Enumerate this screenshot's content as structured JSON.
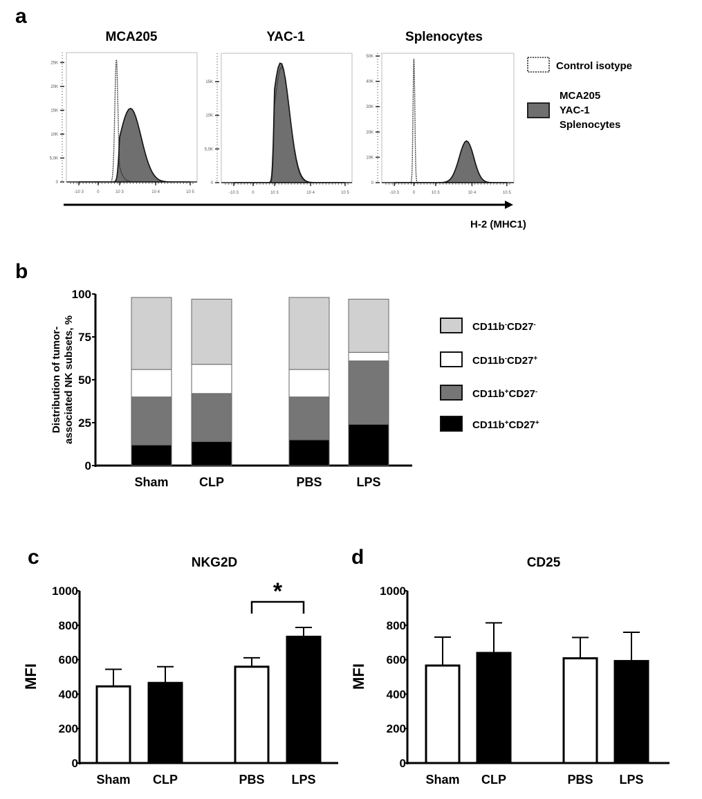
{
  "panel_letters": {
    "a": "a",
    "b": "b",
    "c": "c",
    "d": "d"
  },
  "chart_data": [
    {
      "type": "histogram",
      "panel": "a",
      "xlabel": "H-2 (MHC1)",
      "x_ticks": [
        "-10 3",
        "0",
        "10 3",
        "10 4",
        "10 5"
      ],
      "legend": [
        {
          "label": "Control isotype",
          "style": "dotted-outline"
        },
        {
          "label": "MCA205\nYAC-1\nSplenocytes",
          "lines": [
            "MCA205",
            "YAC-1",
            "Splenocytes"
          ],
          "style": "filled-gray",
          "color": "#6f6f6f"
        }
      ],
      "subplots": [
        {
          "title": "MCA205",
          "y_ticks": [
            "0",
            "5,0K",
            "10K",
            "15K",
            "20K",
            "25K"
          ],
          "y_tick_values": [
            0,
            5000,
            10000,
            15000,
            20000,
            25000
          ],
          "ylim": [
            0,
            26500
          ],
          "control_peak": {
            "x_log10": 2.55,
            "count": 25600,
            "width": 0.22
          },
          "sample_peak": {
            "x_log10": 3.3,
            "count": 15400,
            "width": 0.3
          }
        },
        {
          "title": "YAC-1",
          "y_ticks": [
            "0",
            "5,0K",
            "10K",
            "15K"
          ],
          "y_tick_values": [
            0,
            5000,
            10000,
            15000
          ],
          "ylim": [
            0,
            18800
          ],
          "control_peak": {
            "x_log10": 3.2,
            "count": 17200,
            "width": 0.22
          },
          "sample_peak": {
            "x_log10": 3.17,
            "count": 17800,
            "width": 0.24
          }
        },
        {
          "title": "Splenocytes",
          "y_ticks": [
            "0",
            "10K",
            "20K",
            "30K",
            "40K",
            "50K"
          ],
          "y_tick_values": [
            0,
            10000,
            20000,
            30000,
            40000,
            50000
          ],
          "ylim": [
            0,
            50000
          ],
          "control_peak": {
            "x_log10": 0,
            "count": 48900,
            "width": 0.13
          },
          "sample_peak": {
            "x_log10": 3.85,
            "count": 16500,
            "width": 0.2
          }
        }
      ]
    },
    {
      "type": "bar",
      "stacked": true,
      "panel": "b",
      "ylabel_lines": [
        "Distribution of tumor-",
        "associated NK subsets, %"
      ],
      "ylim": [
        0,
        100
      ],
      "y_ticks": [
        0,
        25,
        50,
        75,
        100
      ],
      "categories": [
        "Sham",
        "CLP",
        "PBS",
        "LPS"
      ],
      "series": [
        {
          "name": "CD11b+CD27+",
          "label_main": "CD11b",
          "sup1": "+",
          "label_mid": "CD27",
          "sup2": "+",
          "color": "#000000",
          "values": [
            12,
            14,
            15,
            24
          ]
        },
        {
          "name": "CD11b+CD27-",
          "label_main": "CD11b",
          "sup1": "+",
          "label_mid": "CD27",
          "sup2": "-",
          "color": "#767676",
          "values": [
            28,
            28,
            25,
            37
          ]
        },
        {
          "name": "CD11b-CD27+",
          "label_main": "CD11b",
          "sup1": "-",
          "label_mid": "CD27",
          "sup2": "+",
          "color": "#ffffff",
          "values": [
            16,
            17,
            16,
            5
          ]
        },
        {
          "name": "CD11b-CD27-",
          "label_main": "CD11b",
          "sup1": "-",
          "label_mid": "CD27",
          "sup2": "-",
          "color": "#d0d0d0",
          "values": [
            42,
            38,
            42,
            31
          ]
        }
      ],
      "legend_order": [
        "CD11b-CD27-",
        "CD11b-CD27+",
        "CD11b+CD27-",
        "CD11b+CD27+"
      ]
    },
    {
      "type": "bar",
      "panel": "c",
      "title": "NKG2D",
      "ylabel": "MFI",
      "ylim": [
        0,
        1000
      ],
      "y_ticks": [
        0,
        200,
        400,
        600,
        800,
        1000
      ],
      "categories": [
        "Sham",
        "CLP",
        "PBS",
        "LPS"
      ],
      "values": [
        445,
        465,
        559,
        733
      ],
      "error_upper": [
        544,
        559,
        611,
        787
      ],
      "fills": [
        "#ffffff",
        "#000000",
        "#ffffff",
        "#000000"
      ],
      "significance": {
        "between": [
          "PBS",
          "LPS"
        ],
        "label": "*"
      }
    },
    {
      "type": "bar",
      "panel": "d",
      "title": "CD25",
      "ylabel": "MFI",
      "ylim": [
        0,
        1000
      ],
      "y_ticks": [
        0,
        200,
        400,
        600,
        800,
        1000
      ],
      "categories": [
        "Sham",
        "CLP",
        "PBS",
        "LPS"
      ],
      "values": [
        566,
        639,
        608,
        592
      ],
      "error_upper": [
        731,
        814,
        729,
        759
      ],
      "fills": [
        "#ffffff",
        "#000000",
        "#ffffff",
        "#000000"
      ]
    }
  ]
}
